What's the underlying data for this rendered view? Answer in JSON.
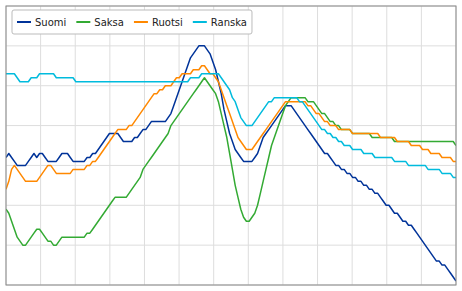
{
  "chart_data": {
    "type": "line",
    "x": [
      2000,
      2000.0807,
      2000.1615,
      2000.2422,
      2000.323,
      2000.4037,
      2000.4845,
      2000.5652,
      2000.646,
      2000.7267,
      2000.8075,
      2000.8882,
      2000.9689,
      2001.0497,
      2001.1304,
      2001.2112,
      2001.2919,
      2001.3727,
      2001.4534,
      2001.5342,
      2001.6149,
      2001.6957,
      2001.7764,
      2001.8571,
      2001.9379,
      2002.0186,
      2002.0994,
      2002.1801,
      2002.2609,
      2002.3416,
      2002.4224,
      2002.5031,
      2002.5839,
      2002.6646,
      2002.7453,
      2002.8261,
      2002.9068,
      2002.9876,
      2003.0683,
      2003.1491,
      2003.2298,
      2003.3106,
      2003.3913,
      2003.472,
      2003.5528,
      2003.6335,
      2003.7143,
      2003.795,
      2003.8758,
      2003.9565,
      2004.0373,
      2004.118,
      2004.1988,
      2004.2795,
      2004.3602,
      2004.441,
      2004.5217,
      2004.6025,
      2004.6832,
      2004.764,
      2004.8447,
      2004.9255,
      2005.0062,
      2005.087,
      2005.1677,
      2005.2484,
      2005.3292,
      2005.4099,
      2005.4907,
      2005.5714,
      2005.6522,
      2005.7329,
      2005.8137,
      2005.8944,
      2005.9752,
      2006.0559,
      2006.1366,
      2006.2174,
      2006.2981,
      2006.3789,
      2006.4596,
      2006.5404,
      2006.6211,
      2006.7019,
      2006.7826,
      2006.8634,
      2006.9441,
      2007.0248,
      2007.1056,
      2007.1863,
      2007.2671,
      2007.3478,
      2007.4286,
      2007.5093,
      2007.5901,
      2007.6708,
      2007.7516,
      2007.8323,
      2007.913,
      2007.9938,
      2008.0745,
      2008.1553,
      2008.236,
      2008.3168,
      2008.3975,
      2008.4783,
      2008.559,
      2008.6398,
      2008.7205,
      2008.8012,
      2008.882,
      2008.9627,
      2009.0435,
      2009.1242,
      2009.205,
      2009.2857,
      2009.3665,
      2009.4472,
      2009.528,
      2009.6087,
      2009.6894,
      2009.7702,
      2009.8509,
      2009.9317,
      2010.0124,
      2010.0932,
      2010.1739,
      2010.2547,
      2010.3354,
      2010.4161,
      2010.4969,
      2010.5776,
      2010.6584,
      2010.7391,
      2010.8199,
      2010.9006,
      2010.9814,
      2011.0621,
      2011.1429,
      2011.2236,
      2011.3043,
      2011.3851,
      2011.4658,
      2011.5466,
      2011.6273,
      2011.7081,
      2011.7888,
      2011.8696,
      2011.9503,
      2012.0311,
      2012.1118,
      2012.1925,
      2012.2733,
      2012.354,
      2012.4348,
      2012.5155,
      2012.5963,
      2012.677,
      2012.7578,
      2012.8385,
      2012.9193,
      2013
    ],
    "series": [
      {
        "name": "Suomi",
        "color": "#003399",
        "values": [
          82,
          83,
          82,
          81,
          80,
          80,
          80,
          80,
          81,
          82,
          83,
          82,
          83,
          83,
          82,
          81,
          81,
          81,
          81,
          82,
          83,
          83,
          83,
          82,
          81,
          81,
          81,
          81,
          81,
          82,
          82,
          83,
          83,
          84,
          85,
          86,
          87,
          88,
          88,
          88,
          88,
          87,
          86,
          86,
          86,
          86,
          87,
          87,
          88,
          89,
          89,
          90,
          91,
          91,
          91,
          91,
          91,
          91,
          92,
          93,
          95,
          97,
          99,
          101,
          103,
          105,
          107,
          108,
          109,
          110,
          110,
          110,
          109,
          108,
          106,
          104,
          101,
          98,
          94,
          91,
          88,
          86,
          84,
          83,
          82,
          81,
          81,
          81,
          81,
          82,
          83,
          85,
          87,
          88,
          89,
          90,
          91,
          92,
          93,
          94,
          95,
          95,
          95,
          94,
          93,
          92,
          91,
          90,
          89,
          88,
          87,
          86,
          85,
          84,
          83,
          83,
          82,
          81,
          80,
          80,
          79,
          79,
          78,
          78,
          77,
          77,
          76,
          76,
          75,
          75,
          74,
          74,
          73,
          73,
          72,
          71,
          70,
          70,
          69,
          68,
          68,
          67,
          66,
          66,
          65,
          65,
          64,
          63,
          62,
          61,
          60,
          59,
          58,
          57,
          56,
          56,
          55,
          55,
          54,
          53,
          52,
          51
        ]
      },
      {
        "name": "Saksa",
        "color": "#33aa33",
        "values": [
          69,
          68,
          66,
          64,
          62,
          61,
          60,
          60,
          61,
          62,
          63,
          64,
          64,
          63,
          62,
          61,
          61,
          60,
          60,
          61,
          62,
          62,
          62,
          62,
          62,
          62,
          62,
          62,
          62,
          63,
          63,
          64,
          65,
          66,
          67,
          68,
          69,
          70,
          71,
          72,
          72,
          72,
          72,
          72,
          73,
          74,
          75,
          76,
          77,
          79,
          80,
          81,
          82,
          83,
          84,
          85,
          86,
          87,
          88,
          90,
          91,
          92,
          93,
          94,
          95,
          96,
          97,
          98,
          99,
          100,
          101,
          102,
          101,
          100,
          99,
          98,
          96,
          93,
          90,
          87,
          83,
          79,
          75,
          72,
          69,
          67,
          66,
          66,
          67,
          68,
          70,
          73,
          76,
          79,
          82,
          85,
          87,
          89,
          91,
          93,
          95,
          96,
          97,
          97,
          97,
          97,
          97,
          97,
          96,
          96,
          96,
          95,
          94,
          93,
          93,
          92,
          91,
          91,
          90,
          90,
          89,
          89,
          89,
          89,
          88,
          88,
          88,
          88,
          88,
          88,
          88,
          87,
          87,
          87,
          87,
          87,
          87,
          87,
          87,
          86,
          86,
          86,
          86,
          86,
          86,
          86,
          86,
          86,
          86,
          86,
          86,
          86,
          86,
          86,
          86,
          86,
          86,
          86,
          86,
          86,
          86,
          85
        ]
      },
      {
        "name": "Ruotsi",
        "color": "#ff8800",
        "values": [
          74,
          76,
          79,
          80,
          79,
          78,
          77,
          76,
          76,
          76,
          76,
          76,
          77,
          78,
          79,
          80,
          80,
          79,
          78,
          78,
          78,
          78,
          78,
          78,
          79,
          79,
          79,
          79,
          79,
          80,
          80,
          81,
          81,
          82,
          83,
          84,
          85,
          86,
          87,
          88,
          89,
          89,
          89,
          89,
          90,
          90,
          91,
          92,
          93,
          94,
          95,
          96,
          97,
          98,
          98,
          99,
          99,
          100,
          100,
          100,
          101,
          102,
          102,
          103,
          103,
          103,
          103,
          104,
          104,
          104,
          105,
          105,
          104,
          103,
          103,
          102,
          101,
          99,
          97,
          95,
          93,
          91,
          89,
          87,
          86,
          85,
          84,
          84,
          84,
          85,
          86,
          87,
          88,
          89,
          90,
          91,
          92,
          93,
          94,
          95,
          96,
          96,
          96,
          96,
          96,
          96,
          96,
          96,
          95,
          95,
          94,
          93,
          93,
          92,
          91,
          91,
          90,
          90,
          90,
          89,
          89,
          89,
          89,
          89,
          88,
          88,
          88,
          88,
          88,
          88,
          88,
          88,
          88,
          88,
          87,
          87,
          87,
          87,
          87,
          87,
          86,
          86,
          86,
          86,
          86,
          85,
          85,
          85,
          85,
          84,
          84,
          84,
          83,
          83,
          83,
          83,
          82,
          82,
          82,
          82,
          81,
          81
        ]
      },
      {
        "name": "Ranska",
        "color": "#00bbdd",
        "values": [
          103,
          103,
          103,
          103,
          102,
          101,
          101,
          101,
          101,
          102,
          102,
          102,
          103,
          103,
          103,
          103,
          103,
          103,
          102,
          102,
          102,
          102,
          102,
          102,
          102,
          101,
          101,
          101,
          101,
          101,
          101,
          101,
          101,
          101,
          101,
          101,
          101,
          101,
          101,
          101,
          101,
          101,
          101,
          101,
          101,
          101,
          101,
          101,
          101,
          101,
          101,
          101,
          101,
          101,
          101,
          101,
          101,
          101,
          101,
          101,
          101,
          101,
          101,
          101,
          101,
          101,
          102,
          102,
          102,
          102,
          103,
          103,
          103,
          103,
          103,
          103,
          103,
          102,
          101,
          100,
          99,
          97,
          96,
          94,
          92,
          91,
          90,
          90,
          90,
          91,
          92,
          93,
          94,
          95,
          96,
          96,
          97,
          97,
          97,
          97,
          97,
          97,
          97,
          97,
          97,
          96,
          96,
          95,
          94,
          93,
          92,
          91,
          90,
          89,
          89,
          88,
          88,
          87,
          87,
          86,
          86,
          85,
          85,
          85,
          84,
          84,
          84,
          84,
          83,
          83,
          83,
          83,
          82,
          82,
          82,
          82,
          82,
          82,
          82,
          81,
          81,
          81,
          81,
          81,
          80,
          80,
          80,
          80,
          80,
          80,
          80,
          79,
          79,
          79,
          79,
          79,
          78,
          78,
          78,
          78,
          77,
          77
        ]
      }
    ],
    "xlim": [
      2000,
      2013
    ],
    "xticks": [
      2000,
      2001,
      2002,
      2003,
      2004,
      2005,
      2006,
      2007,
      2008,
      2009,
      2010,
      2011,
      2012,
      2013
    ],
    "ylim": [
      50,
      120
    ],
    "yticks": [
      50,
      60,
      70,
      80,
      90,
      100,
      110,
      120
    ],
    "grid": true,
    "legend": "upper left",
    "tick_labels": false
  }
}
